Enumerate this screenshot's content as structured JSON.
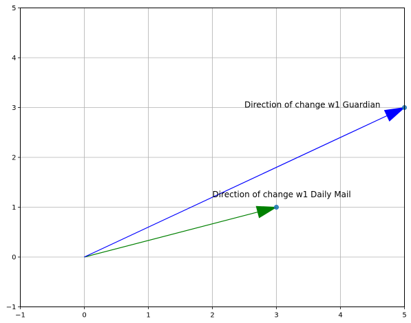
{
  "chart_data": {
    "type": "scatter",
    "title": "",
    "xlabel": "",
    "ylabel": "",
    "xlim": [
      -1,
      5
    ],
    "ylim": [
      -1,
      5
    ],
    "grid": true,
    "x_ticks": [
      -1,
      0,
      1,
      2,
      3,
      4,
      5
    ],
    "y_ticks": [
      -1,
      0,
      1,
      2,
      3,
      4,
      5
    ],
    "x_tick_labels": [
      "−1",
      "0",
      "1",
      "2",
      "3",
      "4",
      "5"
    ],
    "y_tick_labels": [
      "−1",
      "0",
      "1",
      "2",
      "3",
      "4",
      "5"
    ],
    "vectors": [
      {
        "origin": [
          0,
          0
        ],
        "end": [
          3,
          1
        ],
        "color": "#008000",
        "annotation": "Direction of change w1 Daily Mail",
        "annotation_pos": [
          2,
          1.2
        ]
      },
      {
        "origin": [
          0,
          0
        ],
        "end": [
          5,
          3
        ],
        "color": "#0000ff",
        "annotation": "Direction of change w1 Guardian",
        "annotation_pos": [
          2.5,
          3
        ]
      }
    ],
    "points": [
      {
        "x": 3,
        "y": 1,
        "color": "#1f77b4"
      },
      {
        "x": 5,
        "y": 3,
        "color": "#1f77b4"
      }
    ]
  }
}
